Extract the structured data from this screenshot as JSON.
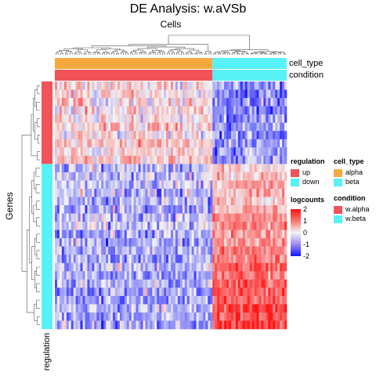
{
  "chart_data": {
    "type": "heatmap",
    "title": "DE Analysis: w.aVSb",
    "column_title": "Cells",
    "row_title": "Genes",
    "column_annotations": [
      {
        "name": "cell_type",
        "label": "cell_type",
        "groups": [
          {
            "label": "alpha",
            "color": "#F5A93E",
            "fraction": 0.68
          },
          {
            "label": "beta",
            "color": "#56F2F5",
            "fraction": 0.32
          }
        ]
      },
      {
        "name": "condition",
        "label": "condition",
        "groups": [
          {
            "label": "w.alpha",
            "color": "#F2525A",
            "fraction": 0.68
          },
          {
            "label": "w.beta",
            "color": "#56F2F5",
            "fraction": 0.32
          }
        ]
      }
    ],
    "row_annotation": {
      "name": "regulation",
      "label": "regulation",
      "groups": [
        {
          "label": "up",
          "color": "#F2525A",
          "n_genes": 10
        },
        {
          "label": "down",
          "color": "#56F2F5",
          "n_genes": 20
        }
      ]
    },
    "colorbar": {
      "label": "logcounts",
      "min": -2,
      "max": 2,
      "ticks": [
        2,
        1,
        0,
        -1,
        -2
      ],
      "colors": {
        "low": "#1414FF",
        "mid": "#F3F3F3",
        "high": "#FF1414"
      }
    },
    "n_rows": 30,
    "n_cols": 100,
    "legend": {
      "regulation": {
        "title": "regulation",
        "items": [
          {
            "label": "up",
            "color": "#F2525A"
          },
          {
            "label": "down",
            "color": "#56F2F5"
          }
        ]
      },
      "cell_type": {
        "title": "cell_type",
        "items": [
          {
            "label": "alpha",
            "color": "#F5A93E"
          },
          {
            "label": "beta",
            "color": "#56F2F5"
          }
        ]
      },
      "condition": {
        "title": "condition",
        "items": [
          {
            "label": "w.alpha",
            "color": "#F2525A"
          },
          {
            "label": "w.beta",
            "color": "#56F2F5"
          }
        ]
      }
    }
  }
}
